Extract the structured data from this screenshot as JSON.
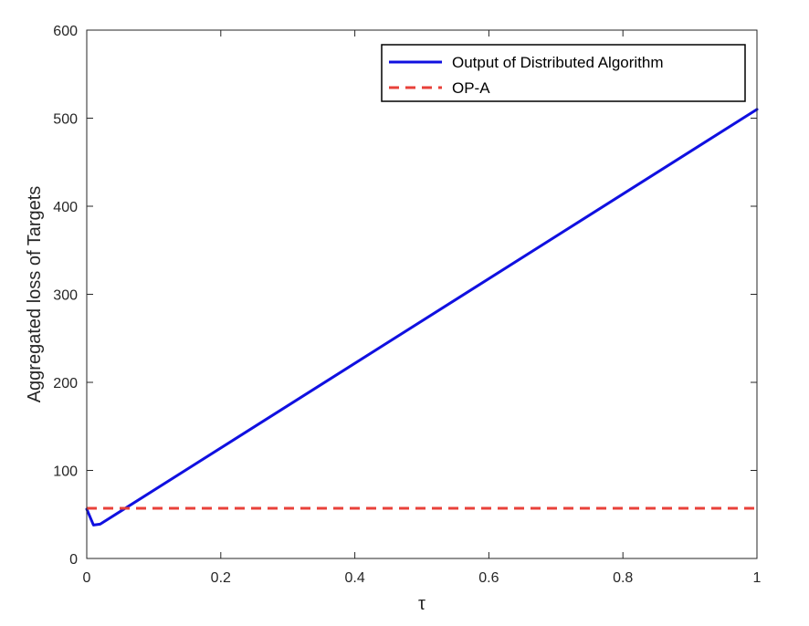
{
  "chart_data": {
    "type": "line",
    "xlabel": "τ",
    "ylabel": "Aggregated loss of Targets",
    "xlim": [
      0,
      1
    ],
    "ylim": [
      0,
      600
    ],
    "xticks": [
      "0",
      "0.2",
      "0.4",
      "0.6",
      "0.8",
      "1"
    ],
    "yticks": [
      "0",
      "100",
      "200",
      "300",
      "400",
      "500",
      "600"
    ],
    "grid": false,
    "legend_position": "top-right",
    "series": [
      {
        "name": "Output of Distributed Algorithm",
        "color": "#1010e0",
        "style": "solid",
        "x": [
          0,
          0.01,
          0.02,
          1
        ],
        "y": [
          56,
          38,
          39,
          510
        ]
      },
      {
        "name": "OP-A",
        "color": "#e8413a",
        "style": "dashed",
        "x": [
          0,
          1
        ],
        "y": [
          57,
          57
        ]
      }
    ]
  }
}
